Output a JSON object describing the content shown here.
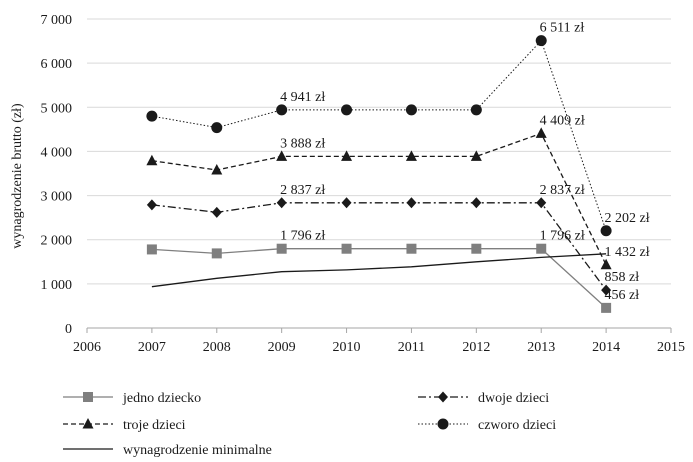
{
  "chart_data": {
    "type": "line",
    "title": "",
    "xlabel": "",
    "ylabel": "wynagrodzenie brutto (zł)",
    "xlim": [
      2006,
      2015
    ],
    "ylim": [
      0,
      7000
    ],
    "x_ticks": [
      "2006",
      "2007",
      "2008",
      "2009",
      "2010",
      "2011",
      "2012",
      "2013",
      "2014",
      "2015"
    ],
    "y_ticks": [
      "0",
      "1 000",
      "2 000",
      "3 000",
      "4 000",
      "5 000",
      "6 000",
      "7 000"
    ],
    "grid": "horizontal",
    "legend_position": "bottom",
    "series": [
      {
        "name": "jedno dziecko",
        "marker": "square",
        "dash": "solid",
        "color": "#7f7f7f",
        "x": [
          2007,
          2008,
          2009,
          2010,
          2011,
          2012,
          2013,
          2014
        ],
        "y": [
          1780,
          1690,
          1796,
          1796,
          1796,
          1796,
          1796,
          456
        ]
      },
      {
        "name": "dwoje dzieci",
        "marker": "diamond",
        "dash": "dash-dot",
        "color": "#1a1a1a",
        "x": [
          2007,
          2008,
          2009,
          2010,
          2011,
          2012,
          2013,
          2014
        ],
        "y": [
          2790,
          2620,
          2837,
          2837,
          2837,
          2837,
          2837,
          858
        ]
      },
      {
        "name": "troje dzieci",
        "marker": "triangle",
        "dash": "dashed",
        "color": "#1a1a1a",
        "x": [
          2007,
          2008,
          2009,
          2010,
          2011,
          2012,
          2013,
          2014
        ],
        "y": [
          3790,
          3580,
          3888,
          3888,
          3888,
          3888,
          4409,
          1432
        ]
      },
      {
        "name": "czworo dzieci",
        "marker": "circle",
        "dash": "dotted",
        "color": "#1a1a1a",
        "x": [
          2007,
          2008,
          2009,
          2010,
          2011,
          2012,
          2013,
          2014
        ],
        "y": [
          4800,
          4540,
          4941,
          4941,
          4941,
          4941,
          6511,
          2202
        ]
      },
      {
        "name": "wynagrodzenie minimalne",
        "marker": "none",
        "dash": "solid",
        "color": "#1a1a1a",
        "x": [
          2007,
          2008,
          2009,
          2010,
          2011,
          2012,
          2013,
          2014
        ],
        "y": [
          936,
          1126,
          1276,
          1317,
          1386,
          1500,
          1600,
          1680
        ]
      }
    ],
    "annotations": [
      {
        "text": "4 941 zł",
        "x": 2009.5,
        "y": 4941
      },
      {
        "text": "3 888 zł",
        "x": 2009.5,
        "y": 3888
      },
      {
        "text": "2 837 zł",
        "x": 2009.5,
        "y": 2837
      },
      {
        "text": "1 796 zł",
        "x": 2009.5,
        "y": 1796
      },
      {
        "text": "6 511 zł",
        "x": 2013.5,
        "y": 6511
      },
      {
        "text": "4 409 zł",
        "x": 2013.5,
        "y": 4409
      },
      {
        "text": "2 837 zł",
        "x": 2013.5,
        "y": 2837
      },
      {
        "text": "1 796 zł",
        "x": 2013.5,
        "y": 1796
      },
      {
        "text": "2 202 zł",
        "x": 2014.5,
        "y": 2202
      },
      {
        "text": "1 432 zł",
        "x": 2014.5,
        "y": 1432
      },
      {
        "text": "858 zł",
        "x": 2014.5,
        "y": 858
      },
      {
        "text": "456 zł",
        "x": 2014.5,
        "y": 456
      }
    ]
  }
}
